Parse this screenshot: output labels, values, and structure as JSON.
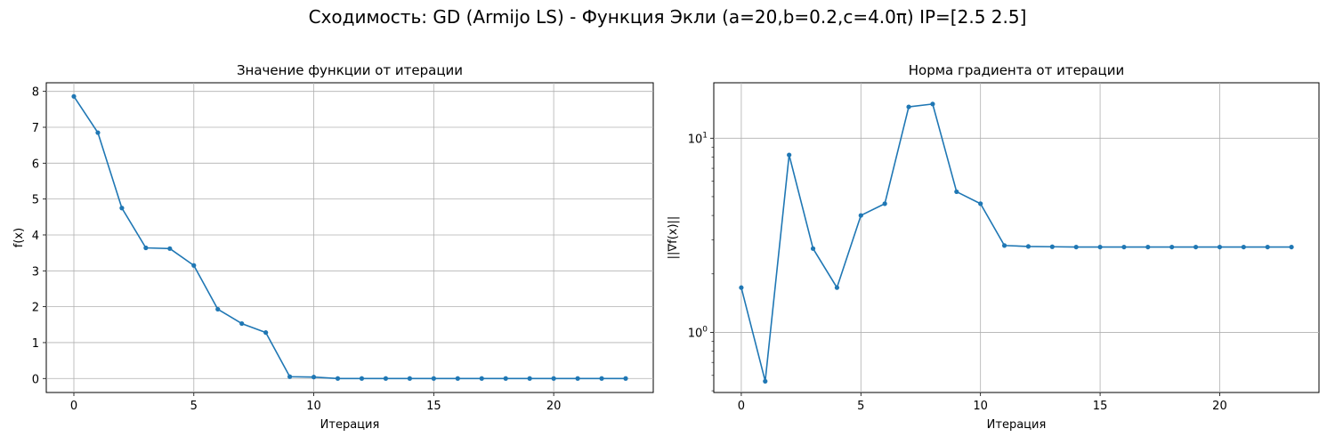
{
  "figure": {
    "suptitle": "Сходимость: GD (Armijo LS) - Функция Экли (a=20,b=0.2,c=4.0π) IP=[2.5 2.5]"
  },
  "chart_data": [
    {
      "type": "line",
      "title": "Значение функции от итерации",
      "xlabel": "Итерация",
      "ylabel": "f(x)",
      "xlim": [
        -1.15,
        24.15
      ],
      "ylim": [
        -0.39,
        8.24
      ],
      "yscale": "linear",
      "grid": true,
      "xticks": [
        0,
        5,
        10,
        15,
        20
      ],
      "yticks": [
        0,
        1,
        2,
        3,
        4,
        5,
        6,
        7,
        8
      ],
      "color": "#1f77b4",
      "x": [
        0,
        1,
        2,
        3,
        4,
        5,
        6,
        7,
        8,
        9,
        10,
        11,
        12,
        13,
        14,
        15,
        16,
        17,
        18,
        19,
        20,
        21,
        22,
        23
      ],
      "y": [
        7.86,
        6.85,
        4.75,
        3.64,
        3.62,
        3.15,
        1.93,
        1.53,
        1.28,
        0.05,
        0.04,
        0.0,
        0.0,
        0.0,
        0.0,
        0.0,
        0.0,
        0.0,
        0.0,
        0.0,
        0.0,
        0.0,
        0.0,
        0.0
      ]
    },
    {
      "type": "line",
      "title": "Норма градиента от итерации",
      "xlabel": "Итерация",
      "ylabel": "||∇f(x)||",
      "xlim": [
        -1.15,
        24.15
      ],
      "ylim": [
        0.49,
        19.3
      ],
      "yscale": "log",
      "grid": true,
      "xticks": [
        0,
        5,
        10,
        15,
        20
      ],
      "yticks": [
        {
          "value": 1,
          "label": "10",
          "exp": "0"
        },
        {
          "value": 10,
          "label": "10",
          "exp": "1"
        }
      ],
      "color": "#1f77b4",
      "x": [
        0,
        1,
        2,
        3,
        4,
        5,
        6,
        7,
        8,
        9,
        10,
        11,
        12,
        13,
        14,
        15,
        16,
        17,
        18,
        19,
        20,
        21,
        22,
        23
      ],
      "y": [
        1.7,
        0.56,
        8.2,
        2.7,
        1.7,
        4.0,
        4.6,
        14.5,
        15.0,
        5.3,
        4.6,
        2.8,
        2.77,
        2.76,
        2.75,
        2.75,
        2.75,
        2.75,
        2.75,
        2.75,
        2.75,
        2.75,
        2.75,
        2.75
      ]
    }
  ]
}
